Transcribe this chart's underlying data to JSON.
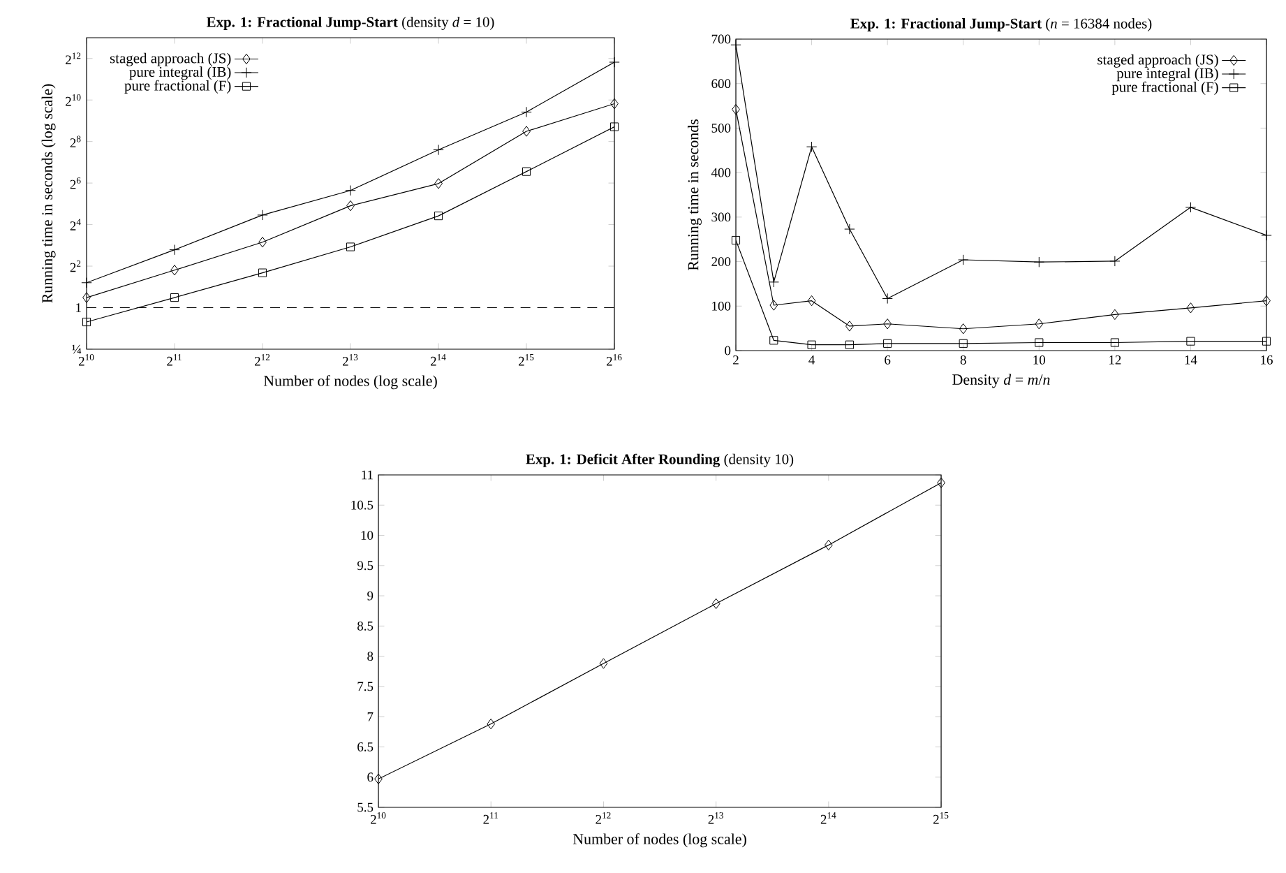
{
  "chart_data": [
    {
      "type": "line",
      "title": "**Exp. 1: Fractional Jump-Start** (density *d* = 10)",
      "xlabel": "Number of nodes (log scale)",
      "ylabel": "Running time in seconds (log scale)",
      "log": "xy",
      "x": [
        1024,
        2048,
        4096,
        8192,
        16384,
        32768,
        65536
      ],
      "xlim": [
        1024,
        65536
      ],
      "ylim": [
        0.25,
        8192
      ],
      "xticks": [
        {
          "value": 1024,
          "label": "2$^{10}$"
        },
        {
          "value": 2048,
          "label": "2$^{11}$"
        },
        {
          "value": 4096,
          "label": "2$^{12}$"
        },
        {
          "value": 8192,
          "label": "2$^{13}$"
        },
        {
          "value": 16384,
          "label": "2$^{14}$"
        },
        {
          "value": 32768,
          "label": "2$^{15}$"
        },
        {
          "value": 65536,
          "label": "2$^{16}$"
        }
      ],
      "yticks": [
        {
          "value": 0.25,
          "label": "¼"
        },
        1,
        {
          "value": 4,
          "label": "2$^{2}$"
        },
        {
          "value": 16,
          "label": "2$^{4}$"
        },
        {
          "value": 64,
          "label": "2$^{6}$"
        },
        {
          "value": 256,
          "label": "2$^{8}$"
        },
        {
          "value": 1024,
          "label": "2$^{10}$"
        },
        {
          "value": 4096,
          "label": "2$^{12}$"
        }
      ],
      "legend": "top left",
      "ref_lines": [
        {
          "axis": "y",
          "value": 1,
          "line_style": "dashed"
        }
      ],
      "series": [
        {
          "name": "staged approach (JS)",
          "color": "#000000",
          "marker": "diamond",
          "values": [
            1.4,
            3.5,
            8.9,
            30,
            63,
            360,
            905
          ]
        },
        {
          "name": "pure integral (IB)",
          "color": "#000000",
          "marker": "cross",
          "values": [
            2.3,
            6.9,
            22,
            50,
            194,
            685,
            3620
          ]
        },
        {
          "name": "pure fractional (F)",
          "color": "#000000",
          "marker": "square",
          "values": [
            0.62,
            1.4,
            3.2,
            7.6,
            21.4,
            94,
            419
          ]
        }
      ]
    },
    {
      "type": "line",
      "title": "**Exp. 1: Fractional Jump-Start** (*n* = 16384 nodes)",
      "xlabel": "Density *d* = *m*/*n*",
      "ylabel": "Running time in seconds",
      "x": [
        2,
        3,
        4,
        5,
        6,
        8,
        10,
        12,
        14,
        16
      ],
      "xlim": [
        2,
        16
      ],
      "ylim": [
        0,
        700
      ],
      "xticks": [
        2,
        4,
        6,
        8,
        10,
        12,
        14,
        16
      ],
      "yticks": [
        0,
        100,
        200,
        300,
        400,
        500,
        600,
        700
      ],
      "legend": "top right",
      "series": [
        {
          "name": "staged approach (JS)",
          "color": "#000000",
          "marker": "diamond",
          "values": [
            542,
            102,
            112,
            55,
            60,
            49,
            60,
            81,
            96,
            112
          ]
        },
        {
          "name": "pure integral (IB)",
          "color": "#000000",
          "marker": "cross",
          "values": [
            687,
            154,
            458,
            273,
            117,
            204,
            199,
            201,
            322,
            259
          ]
        },
        {
          "name": "pure fractional (F)",
          "color": "#000000",
          "marker": "square",
          "values": [
            248,
            23,
            13,
            13,
            16,
            16,
            18,
            18,
            21,
            21
          ]
        }
      ]
    },
    {
      "type": "line",
      "title": "**Exp. 1: Deficit After Rounding** (density 10)",
      "xlabel": "Number of nodes (log scale)",
      "log": "x",
      "x": [
        1024,
        2048,
        4096,
        8192,
        16384,
        32768
      ],
      "xlim": [
        1024,
        32768
      ],
      "ylim": [
        5.5,
        11
      ],
      "xticks": [
        {
          "value": 1024,
          "label": "2$^{10}$"
        },
        {
          "value": 2048,
          "label": "2$^{11}$"
        },
        {
          "value": 4096,
          "label": "2$^{12}$"
        },
        {
          "value": 8192,
          "label": "2$^{13}$"
        },
        {
          "value": 16384,
          "label": "2$^{14}$"
        },
        {
          "value": 32768,
          "label": "2$^{15}$"
        }
      ],
      "yticks": [
        5.5,
        6,
        6.5,
        7,
        7.5,
        8,
        8.5,
        9,
        9.5,
        10,
        10.5,
        11
      ],
      "series": [
        {
          "color": "#000000",
          "marker": "diamond",
          "values": [
            5.97,
            6.88,
            7.88,
            8.87,
            9.84,
            10.87
          ]
        }
      ]
    }
  ]
}
